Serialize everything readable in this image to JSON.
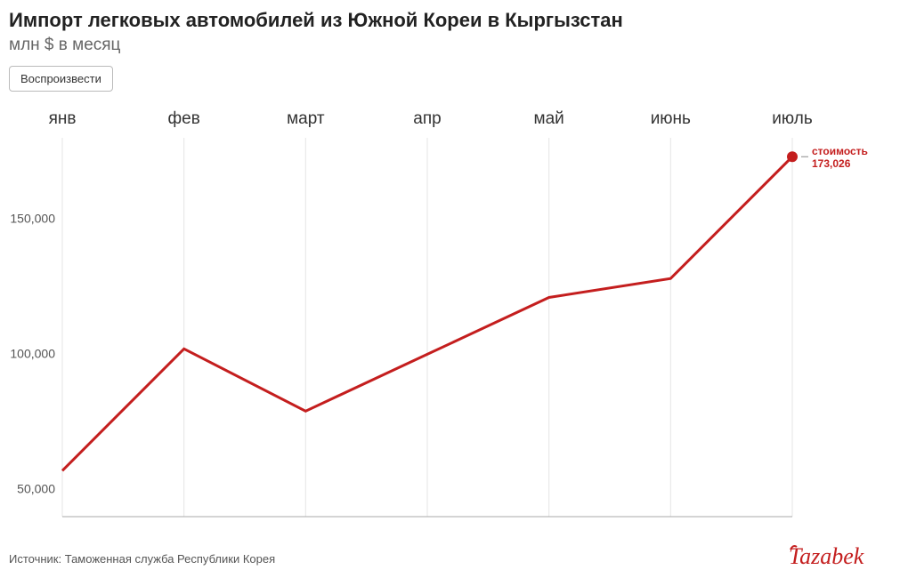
{
  "header": {
    "title": "Импорт легковых автомобилей из Южной Кореи в Кыргызстан",
    "subtitle": "млн $ в месяц",
    "play_button": "Воспроизвести"
  },
  "chart": {
    "type": "line",
    "categories": [
      "янв",
      "фев",
      "март",
      "апр",
      "май",
      "июнь",
      "июль"
    ],
    "series_name": "стоимость",
    "values": [
      57000,
      102000,
      79000,
      100000,
      121000,
      128000,
      173026
    ],
    "end_label_name": "стоимость",
    "end_label_value": "173,026",
    "line_color": "#c41e1e",
    "marker_color": "#c41e1e",
    "marker_radius": 6,
    "line_width": 3,
    "y_ticks": [
      50000,
      100000,
      150000
    ],
    "y_tick_labels": [
      "50,000",
      "100,000",
      "150,000"
    ],
    "ylim_min": 40000,
    "ylim_max": 180000,
    "plot_bg": "#ffffff",
    "grid_color": "#e5e5e5",
    "baseline_color": "#aaaaaa",
    "x_label_fontsize": 19,
    "y_label_fontsize": 14,
    "end_label_fontsize": 12
  },
  "footer": {
    "source": "Источник: Таможенная служба Республики Корея",
    "logo_text": "Tazabek",
    "logo_color": "#c41e1e"
  }
}
